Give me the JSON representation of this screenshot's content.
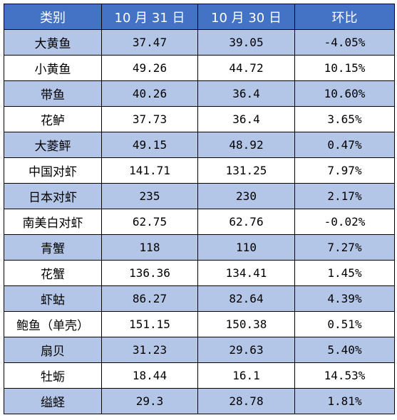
{
  "table": {
    "headers": [
      "类别",
      "10 月 31 日",
      "10 月 30 日",
      "环比"
    ],
    "rows": [
      [
        "大黄鱼",
        "37.47",
        "39.05",
        "-4.05%"
      ],
      [
        "小黄鱼",
        "49.26",
        "44.72",
        "10.15%"
      ],
      [
        "带鱼",
        "40.26",
        "36.4",
        "10.60%"
      ],
      [
        "花鲈",
        "37.73",
        "36.4",
        "3.65%"
      ],
      [
        "大菱鲆",
        "49.15",
        "48.92",
        "0.47%"
      ],
      [
        "中国对虾",
        "141.71",
        "131.25",
        "7.97%"
      ],
      [
        "日本对虾",
        "235",
        "230",
        "2.17%"
      ],
      [
        "南美白对虾",
        "62.75",
        "62.76",
        "-0.02%"
      ],
      [
        "青蟹",
        "118",
        "110",
        "7.27%"
      ],
      [
        "花蟹",
        "136.36",
        "134.41",
        "1.45%"
      ],
      [
        "虾蛄",
        "86.27",
        "82.64",
        "4.39%"
      ],
      [
        "鲍鱼（单壳）",
        "151.15",
        "150.38",
        "0.51%"
      ],
      [
        "扇贝",
        "31.23",
        "29.63",
        "5.40%"
      ],
      [
        "牡蛎",
        "18.44",
        "16.1",
        "14.53%"
      ],
      [
        "缢蛏",
        "29.3",
        "28.78",
        "1.81%"
      ]
    ]
  },
  "colors": {
    "header_bg": "#4472c4",
    "header_text": "#ffffff",
    "band": "#b4c6e7",
    "plain": "#ffffff",
    "border": "#000000"
  }
}
